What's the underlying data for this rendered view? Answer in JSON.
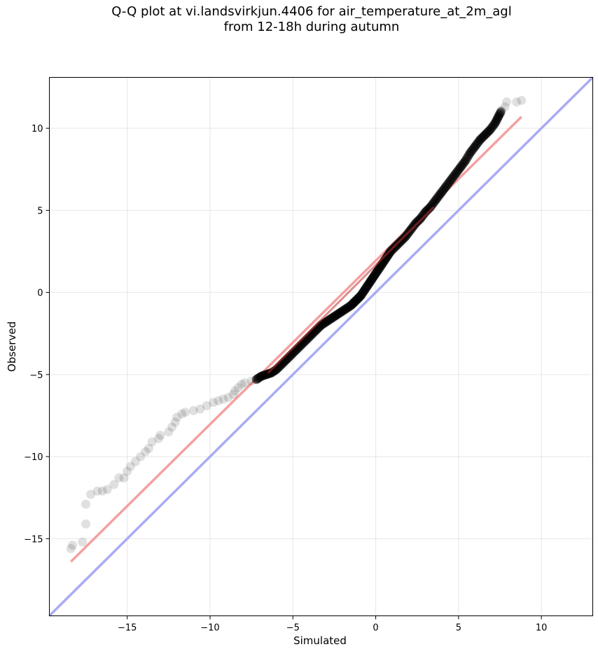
{
  "chart_data": {
    "type": "scatter",
    "title_line1": "Q-Q plot at vi.landsvirkjun.4406 for air_temperature_at_2m_agl",
    "title_line2": "from 12-18h during autumn",
    "xlabel": "Simulated",
    "ylabel": "Observed",
    "xlim": [
      -19.7,
      13.1
    ],
    "ylim": [
      -19.7,
      13.1
    ],
    "xticks": [
      -15,
      -10,
      -5,
      0,
      5,
      10
    ],
    "yticks": [
      -15,
      -10,
      -5,
      0,
      5,
      10
    ],
    "xtick_labels": [
      "−15",
      "−10",
      "−5",
      "0",
      "5",
      "10"
    ],
    "ytick_labels": [
      "−15",
      "−10",
      "−5",
      "0",
      "5",
      "10"
    ],
    "grid": true,
    "points": [
      [
        -18.4,
        -15.6
      ],
      [
        -18.3,
        -15.4
      ],
      [
        -17.7,
        -15.2
      ],
      [
        -17.5,
        -14.1
      ],
      [
        -17.5,
        -12.9
      ],
      [
        -17.2,
        -12.3
      ],
      [
        -16.8,
        -12.1
      ],
      [
        -16.5,
        -12.1
      ],
      [
        -16.2,
        -12.0
      ],
      [
        -15.8,
        -11.7
      ],
      [
        -15.5,
        -11.3
      ],
      [
        -15.2,
        -11.3
      ],
      [
        -15.0,
        -10.9
      ],
      [
        -14.8,
        -10.6
      ],
      [
        -14.5,
        -10.3
      ],
      [
        -14.2,
        -10.0
      ],
      [
        -13.9,
        -9.7
      ],
      [
        -13.7,
        -9.5
      ],
      [
        -13.5,
        -9.1
      ],
      [
        -13.1,
        -8.9
      ],
      [
        -13.0,
        -8.7
      ],
      [
        -12.5,
        -8.5
      ],
      [
        -12.3,
        -8.2
      ],
      [
        -12.1,
        -7.9
      ],
      [
        -12.0,
        -7.6
      ],
      [
        -11.7,
        -7.4
      ],
      [
        -11.5,
        -7.3
      ],
      [
        -11.0,
        -7.2
      ],
      [
        -10.6,
        -7.1
      ],
      [
        -10.2,
        -6.9
      ],
      [
        -9.8,
        -6.7
      ],
      [
        -9.5,
        -6.6
      ],
      [
        -9.2,
        -6.5
      ],
      [
        -8.9,
        -6.4
      ],
      [
        -8.6,
        -6.2
      ],
      [
        -8.5,
        -6.0
      ],
      [
        -8.3,
        -5.8
      ],
      [
        -8.1,
        -5.6
      ],
      [
        -7.9,
        -5.5
      ],
      [
        -7.5,
        -5.4
      ],
      [
        -7.2,
        -5.3
      ],
      [
        -6.9,
        -5.1
      ],
      [
        -6.6,
        -5.0
      ],
      [
        -6.3,
        -4.9
      ],
      [
        -6.0,
        -4.7
      ],
      [
        -5.7,
        -4.4
      ],
      [
        -5.4,
        -4.1
      ],
      [
        -5.1,
        -3.8
      ],
      [
        -4.8,
        -3.5
      ],
      [
        -4.5,
        -3.2
      ],
      [
        -4.2,
        -2.9
      ],
      [
        -3.9,
        -2.6
      ],
      [
        -3.6,
        -2.3
      ],
      [
        -3.3,
        -2.0
      ],
      [
        -3.0,
        -1.8
      ],
      [
        -2.7,
        -1.6
      ],
      [
        -2.4,
        -1.4
      ],
      [
        -2.1,
        -1.2
      ],
      [
        -1.8,
        -1.0
      ],
      [
        -1.5,
        -0.8
      ],
      [
        -1.3,
        -0.6
      ],
      [
        -1.1,
        -0.4
      ],
      [
        -0.9,
        -0.2
      ],
      [
        -0.7,
        0.1
      ],
      [
        -0.5,
        0.4
      ],
      [
        -0.3,
        0.7
      ],
      [
        -0.1,
        1.0
      ],
      [
        0.1,
        1.3
      ],
      [
        0.3,
        1.6
      ],
      [
        0.5,
        1.9
      ],
      [
        0.7,
        2.2
      ],
      [
        0.9,
        2.5
      ],
      [
        1.2,
        2.8
      ],
      [
        1.5,
        3.1
      ],
      [
        1.8,
        3.4
      ],
      [
        2.1,
        3.8
      ],
      [
        2.4,
        4.2
      ],
      [
        2.7,
        4.5
      ],
      [
        3.0,
        4.9
      ],
      [
        3.3,
        5.2
      ],
      [
        3.6,
        5.6
      ],
      [
        3.9,
        6.0
      ],
      [
        4.2,
        6.4
      ],
      [
        4.5,
        6.8
      ],
      [
        4.8,
        7.2
      ],
      [
        5.1,
        7.6
      ],
      [
        5.4,
        8.0
      ],
      [
        5.7,
        8.5
      ],
      [
        6.0,
        8.9
      ],
      [
        6.3,
        9.3
      ],
      [
        6.6,
        9.6
      ],
      [
        6.9,
        9.9
      ],
      [
        7.2,
        10.3
      ],
      [
        7.4,
        10.7
      ],
      [
        7.6,
        11.1
      ],
      [
        7.8,
        11.3
      ],
      [
        7.9,
        11.6
      ],
      [
        8.5,
        11.6
      ],
      [
        8.8,
        11.7
      ]
    ],
    "fit_line": {
      "x": [
        -18.4,
        8.8
      ],
      "y": [
        -16.4,
        10.7
      ],
      "color": "#f4a0a0"
    },
    "identity_line": {
      "x": [
        -19.7,
        13.1
      ],
      "y": [
        -19.7,
        13.1
      ],
      "color": "#a9abf5"
    },
    "point_color": "#000000"
  }
}
